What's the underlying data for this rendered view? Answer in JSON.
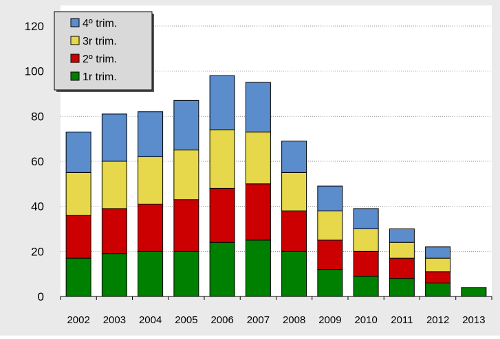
{
  "chart_data": {
    "type": "bar",
    "stacked": true,
    "categories": [
      "2002",
      "2003",
      "2004",
      "2005",
      "2006",
      "2007",
      "2008",
      "2009",
      "2010",
      "2011",
      "2012",
      "2013"
    ],
    "series": [
      {
        "name": "1r trim.",
        "color": "#008000",
        "values": [
          17,
          19,
          20,
          20,
          24,
          25,
          20,
          12,
          9,
          8,
          6,
          4
        ]
      },
      {
        "name": "2º trim.",
        "color": "#cc0000",
        "values": [
          19,
          20,
          21,
          23,
          24,
          25,
          18,
          13,
          11,
          9,
          5,
          0
        ]
      },
      {
        "name": "3r trim.",
        "color": "#e6d84a",
        "values": [
          19,
          21,
          21,
          22,
          26,
          23,
          17,
          13,
          10,
          7,
          6,
          0
        ]
      },
      {
        "name": "4º trim.",
        "color": "#5b8ccc",
        "values": [
          18,
          21,
          20,
          22,
          24,
          22,
          14,
          11,
          9,
          6,
          5,
          0
        ]
      }
    ],
    "ylim": [
      0,
      120
    ],
    "yticks": [
      0,
      20,
      40,
      60,
      80,
      100,
      120
    ],
    "grid": "horizontal-dotted",
    "legend": {
      "placement": "top-left",
      "order": [
        "4º trim.",
        "3r trim.",
        "2º trim.",
        "1r trim."
      ]
    },
    "background_color": "#eaeaea",
    "title": "",
    "xlabel": "",
    "ylabel": ""
  }
}
